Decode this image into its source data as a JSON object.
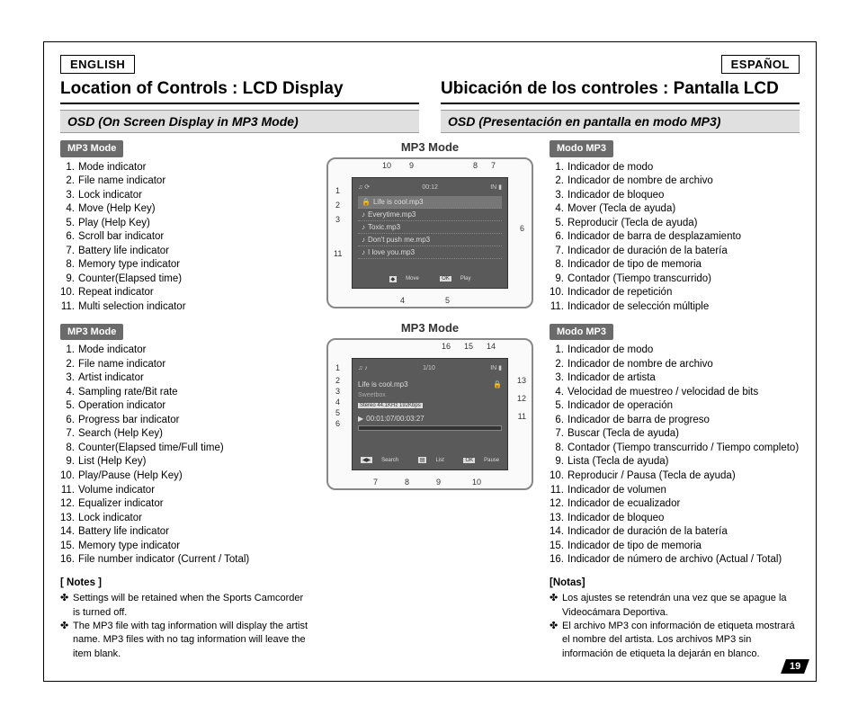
{
  "flags": {
    "left": "ENGLISH",
    "right": "ESPAÑOL"
  },
  "titles": {
    "left": "Location of Controls : LCD Display",
    "right": "Ubicación de los controles : Pantalla LCD"
  },
  "subs": {
    "left": "OSD (On Screen Display in MP3 Mode)",
    "right": "OSD (Presentación en pantalla en modo MP3)"
  },
  "pills": {
    "en1": "MP3 Mode",
    "en2": "MP3 Mode",
    "es1": "Modo MP3",
    "es2": "Modo MP3",
    "mid1": "MP3 Mode",
    "mid2": "MP3 Mode"
  },
  "list_en1": [
    "Mode indicator",
    "File name indicator",
    "Lock indicator",
    "Move (Help Key)",
    "Play (Help Key)",
    "Scroll bar indicator",
    "Battery life indicator",
    "Memory type indicator",
    "Counter(Elapsed time)",
    "Repeat indicator",
    "Multi selection indicator"
  ],
  "list_en2": [
    "Mode indicator",
    "File name indicator",
    "Artist indicator",
    "Sampling rate/Bit rate",
    "Operation indicator",
    "Progress bar indicator",
    "Search (Help Key)",
    "Counter(Elapsed time/Full time)",
    "List (Help Key)",
    "Play/Pause (Help Key)",
    "Volume indicator",
    "Equalizer indicator",
    "Lock indicator",
    "Battery life indicator",
    "Memory type indicator",
    "File number indicator (Current / Total)"
  ],
  "list_es1": [
    "Indicador de modo",
    "Indicador de nombre de archivo",
    "Indicador de bloqueo",
    "Mover (Tecla de ayuda)",
    "Reproducir (Tecla de ayuda)",
    "Indicador de barra de desplazamiento",
    "Indicador de duración de la batería",
    "Indicador de tipo de memoria",
    "Contador (Tiempo transcurrido)",
    "Indicador de repetición",
    "Indicador de selección múltiple"
  ],
  "list_es2": [
    "Indicador de modo",
    "Indicador de nombre de archivo",
    "Indicador de artista",
    "Velocidad de muestreo / velocidad de bits",
    "Indicador de operación",
    "Indicador de barra de progreso",
    "Buscar (Tecla de ayuda)",
    "Contador (Tiempo transcurrido / Tiempo completo)",
    "Lista (Tecla de ayuda)",
    "Reproducir / Pausa (Tecla de ayuda)",
    "Indicador de volumen",
    "Indicador de ecualizador",
    "Indicador de bloqueo",
    "Indicador de duración de la batería",
    "Indicador de tipo de memoria",
    "Indicador de número de archivo (Actual / Total)"
  ],
  "notes_en_head": "[ Notes ]",
  "notes_en": [
    "Settings will be retained when the Sports Camcorder is turned off.",
    "The MP3 file with tag information will display the artist name. MP3 files with no tag information will leave the item blank."
  ],
  "notes_es_head": "[Notas]",
  "notes_es": [
    "Los ajustes se retendrán una vez que se apague la Videocámara Deportiva.",
    "El archivo MP3 con información de etiqueta mostrará el nombre del artista. Los archivos MP3 sin información de etiqueta la dejarán en blanco."
  ],
  "lcd1": {
    "counter": "00:12",
    "files": [
      "Life is cool.mp3",
      "Everytime.mp3",
      "Toxic.mp3",
      "Don't push me.mp3",
      "I love you.mp3"
    ],
    "help": {
      "move": "Move",
      "play": "Play"
    },
    "callouts_top": [
      "10",
      "9",
      "8",
      "7"
    ],
    "callouts_left": [
      "1",
      "2",
      "3",
      "11"
    ],
    "callouts_right": [
      "6"
    ],
    "callouts_btm": [
      "4",
      "5"
    ]
  },
  "lcd2": {
    "pos": "1/10",
    "file": "Life is cool.mp3",
    "artist": "Sweetbox",
    "rate": "Stereo 44.1KHz 192Kbps",
    "time": "00:01:07/00:03:27",
    "help": {
      "search": "Search",
      "list": "List",
      "pause": "Pause"
    },
    "callouts_top": [
      "16",
      "15",
      "14"
    ],
    "callouts_left": [
      "1",
      "2",
      "3",
      "4",
      "5",
      "6"
    ],
    "callouts_right": [
      "13",
      "12",
      "11"
    ],
    "callouts_btm": [
      "7",
      "8",
      "9",
      "10"
    ]
  },
  "pagenum": "19",
  "colors": {
    "pill_bg": "#6b6b6b",
    "sub_bg": "#e0e0e0",
    "lcd_bg": "#5a5a5a"
  }
}
